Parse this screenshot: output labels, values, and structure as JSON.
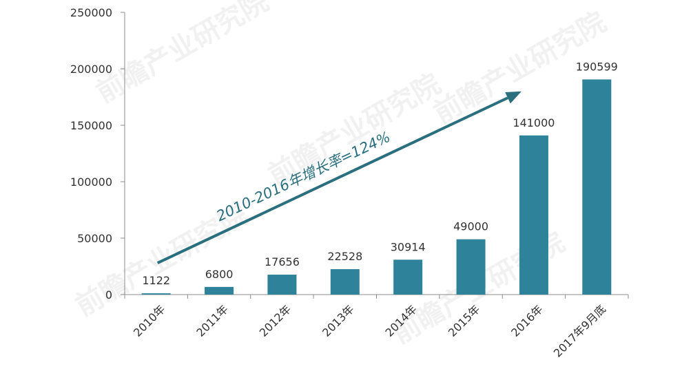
{
  "chart_data": {
    "type": "bar",
    "categories": [
      "2010年",
      "2011年",
      "2012年",
      "2013年",
      "2014年",
      "2015年",
      "2016年",
      "2017年9月底"
    ],
    "values": [
      1122,
      6800,
      17656,
      22528,
      30914,
      49000,
      141000,
      190599
    ],
    "data_labels": [
      "1122",
      "6800",
      "17656",
      "22528",
      "30914",
      "49000",
      "141000",
      "190599"
    ],
    "ylim": [
      0,
      250000
    ],
    "yticks": [
      0,
      50000,
      100000,
      150000,
      200000,
      250000
    ],
    "ytick_labels": [
      "0",
      "50000",
      "100000",
      "150000",
      "200000",
      "250000"
    ],
    "grid": false,
    "bar_color": "#2e8299",
    "annotation": {
      "text": "2010-2016年增长率=124%",
      "color": "#2a6f7d",
      "arrow_from": {
        "x": "2010年",
        "y": 28000
      },
      "arrow_to": {
        "x": "2016年",
        "y": 180000
      }
    },
    "watermark": "前瞻产业研究院"
  }
}
